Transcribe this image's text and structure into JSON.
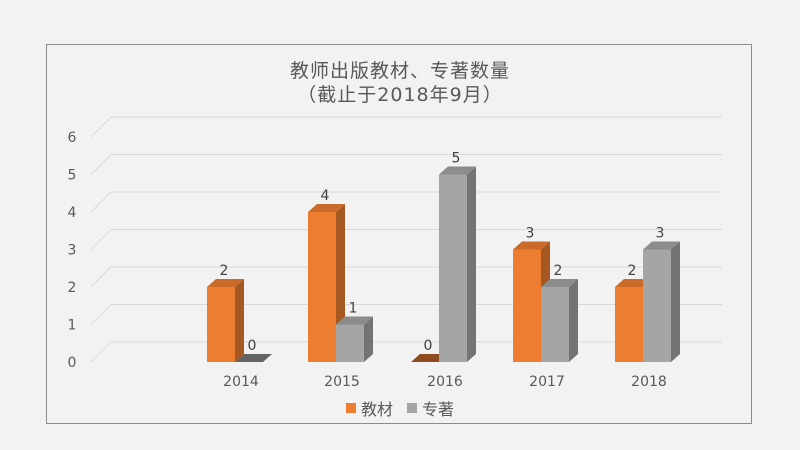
{
  "chart_data": {
    "type": "bar",
    "title": "教师出版教材、专著数量",
    "subtitle": "（截止于2018年9月）",
    "categories": [
      "2014",
      "2015",
      "2016",
      "2017",
      "2018"
    ],
    "series": [
      {
        "name": "教材",
        "values": [
          2,
          4,
          0,
          3,
          2
        ],
        "color": "#ed7d31"
      },
      {
        "name": "专著",
        "values": [
          0,
          1,
          5,
          2,
          3
        ],
        "color": "#a5a5a5"
      }
    ],
    "ylim": [
      0,
      6
    ],
    "yticks": [
      "0",
      "1",
      "2",
      "3",
      "4",
      "5",
      "6"
    ],
    "grid": true,
    "legend_position": "bottom",
    "style": "3d-column"
  }
}
